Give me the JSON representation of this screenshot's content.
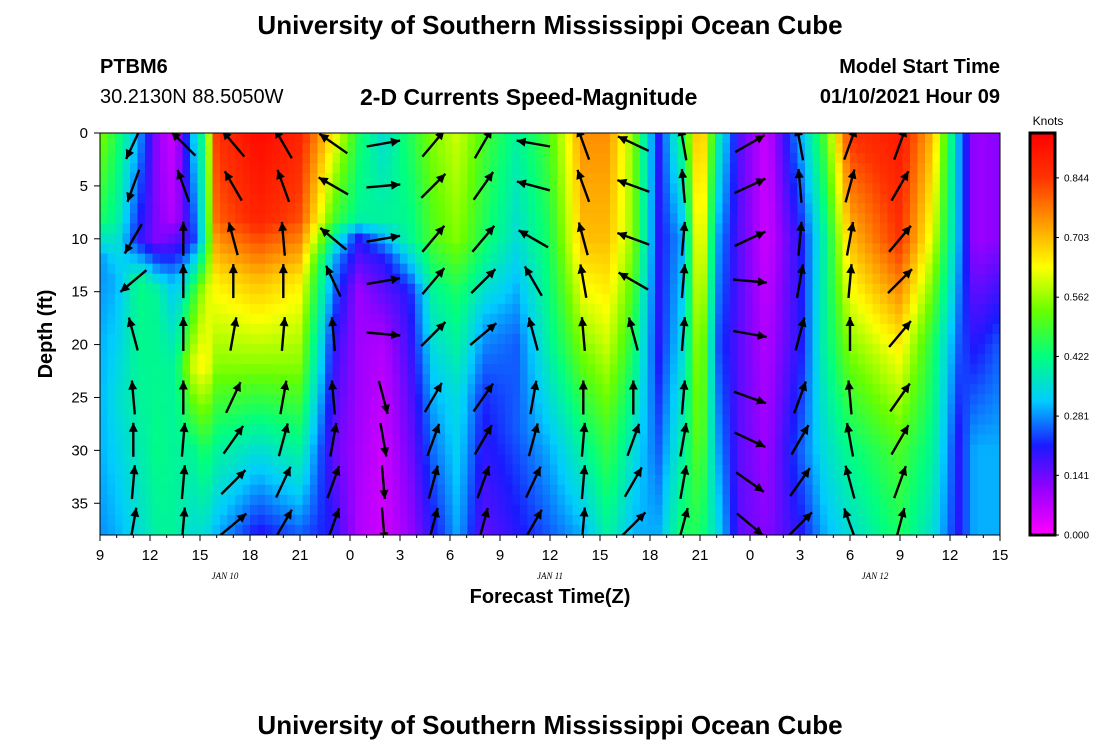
{
  "header": {
    "title": "University of Southern Mississippi Ocean Cube",
    "station_id": "PTBM6",
    "station_coords": "30.2130N 88.5050W",
    "chart_title": "2-D Currents Speed-Magnitude",
    "model_label": "Model Start Time",
    "model_time": "01/10/2021 Hour 09"
  },
  "footer": {
    "title": "University of Southern Mississippi Ocean Cube"
  },
  "chart_data": {
    "type": "heatmap",
    "xlabel": "Forecast Time(Z)",
    "ylabel": "Depth (ft)",
    "x_tick_labels": [
      "9",
      "12",
      "15",
      "18",
      "21",
      "0",
      "3",
      "6",
      "9",
      "12",
      "15",
      "18",
      "21",
      "0",
      "3",
      "6",
      "9",
      "12",
      "15"
    ],
    "x_range_hours": [
      0,
      54
    ],
    "date_labels": [
      {
        "label": "JAN 10",
        "hour": 7.5
      },
      {
        "label": "JAN 11",
        "hour": 27
      },
      {
        "label": "JAN 12",
        "hour": 46.5
      }
    ],
    "y_ticks": [
      0,
      5,
      10,
      15,
      20,
      25,
      30,
      35
    ],
    "ylim": [
      0,
      38
    ],
    "colorbar": {
      "title": "Knots",
      "tick_labels": [
        "0.844",
        "0.703",
        "0.562",
        "0.422",
        "0.281",
        "0.141",
        "0.000"
      ],
      "tick_values": [
        0.844,
        0.703,
        0.562,
        0.422,
        0.281,
        0.141,
        0.0
      ],
      "range": [
        0,
        0.95
      ],
      "colors": [
        "#ff00ff",
        "#9900ff",
        "#1a1aff",
        "#00ccff",
        "#00ff80",
        "#66ff00",
        "#ffff00",
        "#ff9900",
        "#ff3300",
        "#ff0000"
      ]
    },
    "speed_by_hour": [
      {
        "hour": 0,
        "profile": [
          [
            0,
            0.55
          ],
          [
            8,
            0.45
          ],
          [
            12,
            0.28
          ],
          [
            20,
            0.3
          ],
          [
            30,
            0.3
          ],
          [
            38,
            0.28
          ]
        ]
      },
      {
        "hour": 1,
        "profile": [
          [
            0,
            0.45
          ],
          [
            8,
            0.4
          ],
          [
            14,
            0.3
          ],
          [
            25,
            0.35
          ],
          [
            38,
            0.3
          ]
        ]
      },
      {
        "hour": 2.3,
        "profile": [
          [
            0,
            0.3
          ],
          [
            10,
            0.2
          ],
          [
            14,
            0.42
          ],
          [
            25,
            0.4
          ],
          [
            38,
            0.35
          ]
        ]
      },
      {
        "hour": 3.5,
        "profile": [
          [
            0,
            0.1
          ],
          [
            10,
            0.12
          ],
          [
            15,
            0.4
          ],
          [
            30,
            0.42
          ],
          [
            38,
            0.4
          ]
        ]
      },
      {
        "hour": 4.5,
        "profile": [
          [
            0,
            0.05
          ],
          [
            8,
            0.08
          ],
          [
            14,
            0.3
          ],
          [
            22,
            0.4
          ],
          [
            38,
            0.4
          ]
        ]
      },
      {
        "hour": 5.5,
        "profile": [
          [
            0,
            0.3
          ],
          [
            10,
            0.2
          ],
          [
            15,
            0.45
          ],
          [
            22,
            0.6
          ],
          [
            30,
            0.4
          ],
          [
            38,
            0.35
          ]
        ]
      },
      {
        "hour": 6.3,
        "profile": [
          [
            0,
            0.45
          ],
          [
            10,
            0.4
          ],
          [
            15,
            0.6
          ],
          [
            22,
            0.65
          ],
          [
            30,
            0.45
          ],
          [
            38,
            0.35
          ]
        ]
      },
      {
        "hour": 7,
        "profile": [
          [
            0,
            0.85
          ],
          [
            8,
            0.8
          ],
          [
            14,
            0.65
          ],
          [
            22,
            0.55
          ],
          [
            30,
            0.4
          ],
          [
            38,
            0.3
          ]
        ]
      },
      {
        "hour": 9.5,
        "profile": [
          [
            0,
            0.93
          ],
          [
            8,
            0.88
          ],
          [
            14,
            0.7
          ],
          [
            22,
            0.55
          ],
          [
            30,
            0.35
          ],
          [
            38,
            0.2
          ]
        ]
      },
      {
        "hour": 12,
        "profile": [
          [
            0,
            0.88
          ],
          [
            8,
            0.82
          ],
          [
            14,
            0.65
          ],
          [
            22,
            0.55
          ],
          [
            30,
            0.4
          ],
          [
            38,
            0.25
          ]
        ]
      },
      {
        "hour": 14,
        "profile": [
          [
            0,
            0.65
          ],
          [
            8,
            0.5
          ],
          [
            12,
            0.3
          ],
          [
            20,
            0.2
          ],
          [
            30,
            0.15
          ],
          [
            38,
            0.2
          ]
        ]
      },
      {
        "hour": 15.5,
        "profile": [
          [
            0,
            0.45
          ],
          [
            8,
            0.4
          ],
          [
            10,
            0.2
          ],
          [
            15,
            0.1
          ],
          [
            25,
            0.1
          ],
          [
            38,
            0.08
          ]
        ]
      },
      {
        "hour": 17,
        "profile": [
          [
            0,
            0.35
          ],
          [
            8,
            0.4
          ],
          [
            12,
            0.2
          ],
          [
            20,
            0.08
          ],
          [
            30,
            0.05
          ],
          [
            38,
            0.05
          ]
        ]
      },
      {
        "hour": 18.5,
        "profile": [
          [
            0,
            0.45
          ],
          [
            10,
            0.4
          ],
          [
            15,
            0.2
          ],
          [
            25,
            0.15
          ],
          [
            38,
            0.1
          ]
        ]
      },
      {
        "hour": 20,
        "profile": [
          [
            0,
            0.55
          ],
          [
            10,
            0.5
          ],
          [
            15,
            0.4
          ],
          [
            25,
            0.3
          ],
          [
            38,
            0.2
          ]
        ]
      },
      {
        "hour": 21.5,
        "profile": [
          [
            0,
            0.6
          ],
          [
            10,
            0.55
          ],
          [
            15,
            0.45
          ],
          [
            25,
            0.35
          ],
          [
            38,
            0.3
          ]
        ]
      },
      {
        "hour": 23,
        "profile": [
          [
            0,
            0.5
          ],
          [
            10,
            0.45
          ],
          [
            18,
            0.3
          ],
          [
            25,
            0.22
          ],
          [
            38,
            0.15
          ]
        ]
      },
      {
        "hour": 25,
        "profile": [
          [
            0,
            0.4
          ],
          [
            10,
            0.35
          ],
          [
            20,
            0.25
          ],
          [
            28,
            0.25
          ],
          [
            38,
            0.2
          ]
        ]
      },
      {
        "hour": 27,
        "profile": [
          [
            0,
            0.5
          ],
          [
            10,
            0.45
          ],
          [
            20,
            0.4
          ],
          [
            30,
            0.3
          ],
          [
            38,
            0.25
          ]
        ]
      },
      {
        "hour": 29,
        "profile": [
          [
            0,
            0.75
          ],
          [
            10,
            0.7
          ],
          [
            20,
            0.55
          ],
          [
            30,
            0.4
          ],
          [
            38,
            0.3
          ]
        ]
      },
      {
        "hour": 30.5,
        "profile": [
          [
            0,
            0.75
          ],
          [
            10,
            0.7
          ],
          [
            20,
            0.6
          ],
          [
            28,
            0.5
          ],
          [
            38,
            0.4
          ]
        ]
      },
      {
        "hour": 32,
        "profile": [
          [
            0,
            0.55
          ],
          [
            10,
            0.55
          ],
          [
            20,
            0.45
          ],
          [
            30,
            0.35
          ],
          [
            38,
            0.3
          ]
        ]
      },
      {
        "hour": 33.5,
        "profile": [
          [
            0,
            0.2
          ],
          [
            10,
            0.2
          ],
          [
            20,
            0.2
          ],
          [
            30,
            0.25
          ],
          [
            38,
            0.3
          ]
        ]
      },
      {
        "hour": 35,
        "profile": [
          [
            0,
            0.45
          ],
          [
            10,
            0.3
          ],
          [
            20,
            0.35
          ],
          [
            30,
            0.4
          ],
          [
            38,
            0.45
          ]
        ]
      },
      {
        "hour": 36,
        "profile": [
          [
            0,
            0.75
          ],
          [
            10,
            0.7
          ],
          [
            20,
            0.6
          ],
          [
            28,
            0.55
          ],
          [
            38,
            0.45
          ]
        ]
      },
      {
        "hour": 37,
        "profile": [
          [
            0,
            0.4
          ],
          [
            10,
            0.3
          ],
          [
            20,
            0.25
          ],
          [
            30,
            0.3
          ],
          [
            38,
            0.35
          ]
        ]
      },
      {
        "hour": 38.5,
        "profile": [
          [
            0,
            0.15
          ],
          [
            10,
            0.15
          ],
          [
            20,
            0.15
          ],
          [
            30,
            0.15
          ],
          [
            38,
            0.15
          ]
        ]
      },
      {
        "hour": 40,
        "profile": [
          [
            0,
            0.05
          ],
          [
            10,
            0.05
          ],
          [
            20,
            0.08
          ],
          [
            30,
            0.1
          ],
          [
            38,
            0.12
          ]
        ]
      },
      {
        "hour": 42,
        "profile": [
          [
            0,
            0.3
          ],
          [
            10,
            0.2
          ],
          [
            20,
            0.2
          ],
          [
            30,
            0.25
          ],
          [
            38,
            0.2
          ]
        ]
      },
      {
        "hour": 43.5,
        "profile": [
          [
            0,
            0.5
          ],
          [
            10,
            0.4
          ],
          [
            20,
            0.4
          ],
          [
            30,
            0.35
          ],
          [
            38,
            0.3
          ]
        ]
      },
      {
        "hour": 45,
        "profile": [
          [
            0,
            0.85
          ],
          [
            10,
            0.7
          ],
          [
            20,
            0.55
          ],
          [
            30,
            0.42
          ],
          [
            38,
            0.35
          ]
        ]
      },
      {
        "hour": 48,
        "profile": [
          [
            0,
            0.9
          ],
          [
            10,
            0.85
          ],
          [
            20,
            0.65
          ],
          [
            30,
            0.5
          ],
          [
            38,
            0.45
          ]
        ]
      },
      {
        "hour": 50,
        "profile": [
          [
            0,
            0.7
          ],
          [
            10,
            0.6
          ],
          [
            20,
            0.45
          ],
          [
            30,
            0.4
          ],
          [
            38,
            0.35
          ]
        ]
      },
      {
        "hour": 51.5,
        "profile": [
          [
            0,
            0.3
          ],
          [
            10,
            0.3
          ],
          [
            20,
            0.25
          ],
          [
            30,
            0.2
          ],
          [
            38,
            0.2
          ]
        ]
      },
      {
        "hour": 52.5,
        "profile": [
          [
            0,
            0.1
          ],
          [
            10,
            0.1
          ],
          [
            20,
            0.2
          ],
          [
            30,
            0.3
          ],
          [
            38,
            0.3
          ]
        ]
      },
      {
        "hour": 54,
        "profile": [
          [
            0,
            0.12
          ],
          [
            10,
            0.12
          ],
          [
            20,
            0.25
          ],
          [
            30,
            0.3
          ],
          [
            38,
            0.3
          ]
        ]
      }
    ],
    "vector_columns": [
      {
        "hour": 2,
        "angles": [
          205,
          200,
          210,
          230,
          345,
          355,
          0,
          5,
          10
        ]
      },
      {
        "hour": 5,
        "angles": [
          315,
          340,
          0,
          0,
          0,
          0,
          5,
          5,
          5
        ]
      },
      {
        "hour": 8,
        "angles": [
          320,
          330,
          345,
          0,
          10,
          25,
          35,
          45,
          50
        ]
      },
      {
        "hour": 11,
        "angles": [
          330,
          340,
          355,
          0,
          5,
          10,
          15,
          25,
          30
        ]
      },
      {
        "hour": 14,
        "angles": [
          305,
          300,
          310,
          335,
          355,
          355,
          10,
          20,
          20
        ]
      },
      {
        "hour": 17,
        "angles": [
          80,
          85,
          80,
          80,
          95,
          165,
          170,
          175,
          175
        ]
      },
      {
        "hour": 20,
        "angles": [
          40,
          45,
          40,
          40,
          45,
          30,
          20,
          15,
          15
        ]
      },
      {
        "hour": 23,
        "angles": [
          30,
          35,
          40,
          45,
          50,
          35,
          30,
          20,
          15
        ]
      },
      {
        "hour": 26,
        "angles": [
          280,
          285,
          300,
          330,
          345,
          10,
          15,
          25,
          30
        ]
      },
      {
        "hour": 29,
        "angles": [
          340,
          340,
          345,
          350,
          355,
          0,
          5,
          5,
          5
        ]
      },
      {
        "hour": 32,
        "angles": [
          295,
          290,
          290,
          300,
          345,
          360,
          20,
          30,
          45
        ]
      },
      {
        "hour": 35,
        "angles": [
          350,
          355,
          5,
          5,
          5,
          5,
          10,
          10,
          15
        ]
      },
      {
        "hour": 39,
        "angles": [
          60,
          65,
          65,
          95,
          100,
          110,
          115,
          125,
          130
        ]
      },
      {
        "hour": 42,
        "angles": [
          350,
          355,
          5,
          10,
          15,
          20,
          30,
          35,
          45
        ]
      },
      {
        "hour": 45,
        "angles": [
          20,
          15,
          10,
          5,
          0,
          355,
          350,
          345,
          340
        ]
      },
      {
        "hour": 48,
        "angles": [
          20,
          30,
          40,
          45,
          40,
          35,
          30,
          20,
          15
        ]
      }
    ]
  }
}
